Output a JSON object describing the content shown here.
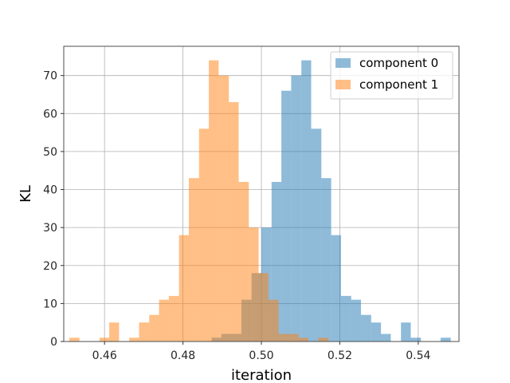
{
  "chart_data": {
    "type": "histogram",
    "title": "",
    "xlabel": "iteration",
    "ylabel": "KL",
    "xlim": [
      0.4496,
      0.5504
    ],
    "ylim": [
      0,
      77.7
    ],
    "xticks": [
      0.46,
      0.48,
      0.5,
      0.52,
      0.54
    ],
    "xtick_labels": [
      "0.46",
      "0.48",
      "0.50",
      "0.52",
      "0.54"
    ],
    "yticks": [
      0,
      10,
      20,
      30,
      40,
      50,
      60,
      70
    ],
    "ytick_labels": [
      "0",
      "10",
      "20",
      "30",
      "40",
      "50",
      "60",
      "70"
    ],
    "grid": true,
    "legend": "top-right",
    "bar_alpha": 0.5,
    "series": [
      {
        "name": "component 0",
        "color": "#1f77b4",
        "bin_edges": [
          0.4873,
          0.4898,
          0.4924,
          0.4949,
          0.4975,
          0.5,
          0.5026,
          0.5051,
          0.5076,
          0.5102,
          0.5127,
          0.5153,
          0.5178,
          0.5203,
          0.5229,
          0.5254,
          0.528,
          0.5305,
          0.533,
          0.5356,
          0.5381,
          0.5407,
          0.5432,
          0.5457,
          0.5483
        ],
        "counts": [
          1,
          2,
          2,
          11,
          18,
          30,
          42,
          66,
          70,
          74,
          56,
          43,
          28,
          12,
          11,
          7,
          5,
          2,
          0,
          5,
          1,
          0,
          0,
          1
        ]
      },
      {
        "name": "component 1",
        "color": "#ff7f0e",
        "bin_edges": [
          0.451,
          0.4536,
          0.4561,
          0.4587,
          0.4612,
          0.4637,
          0.4663,
          0.4688,
          0.4714,
          0.4739,
          0.4764,
          0.479,
          0.4815,
          0.4841,
          0.4866,
          0.4891,
          0.4917,
          0.4942,
          0.4968,
          0.4993,
          0.5018,
          0.5044,
          0.5069,
          0.5095,
          0.512,
          0.5145,
          0.5171
        ],
        "counts": [
          1,
          0,
          0,
          1,
          5,
          0,
          1,
          5,
          7,
          11,
          12,
          28,
          43,
          56,
          74,
          70,
          63,
          42,
          30,
          18,
          11,
          2,
          2,
          1,
          0,
          1
        ]
      }
    ]
  }
}
